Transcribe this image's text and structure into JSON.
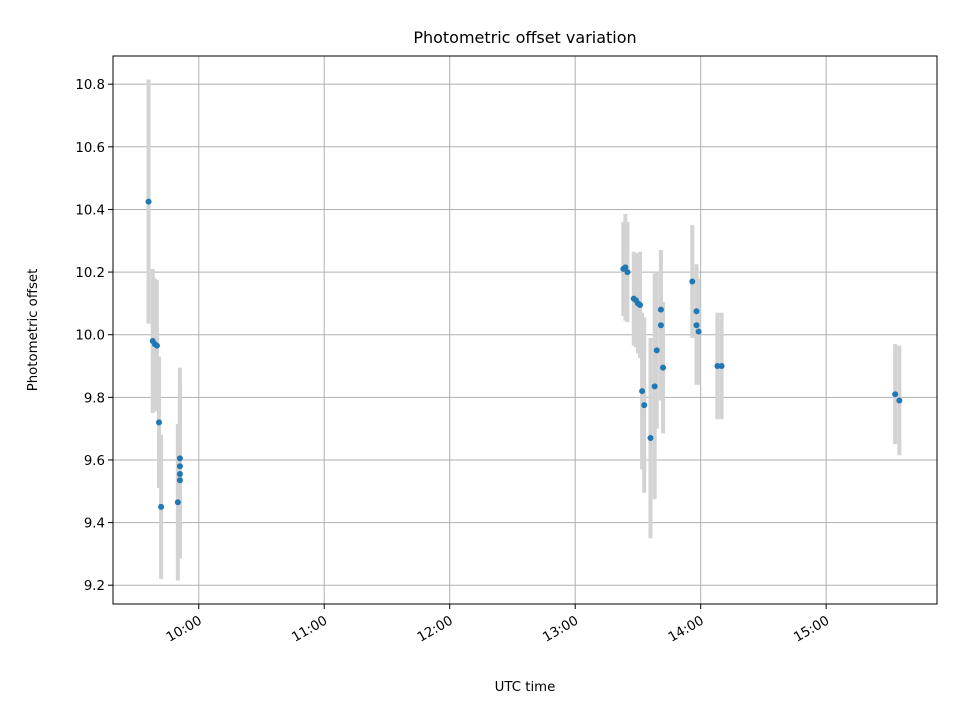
{
  "chart_data": {
    "type": "scatter",
    "title": "Photometric offset variation",
    "xlabel": "UTC time",
    "ylabel": "Photometric offset",
    "xlim": [
      "09:19",
      "15:53"
    ],
    "ylim": [
      9.14,
      10.89
    ],
    "grid": true,
    "xticks": [
      "10:00",
      "11:00",
      "12:00",
      "13:00",
      "14:00",
      "15:00"
    ],
    "yticks": [
      "9.2",
      "9.4",
      "9.6",
      "9.8",
      "10.0",
      "10.2",
      "10.4",
      "10.6",
      "10.8"
    ],
    "point_color": "#1f77b4",
    "errorbar_color": "#d3d3d3",
    "series": [
      {
        "points": [
          {
            "x": "09:36",
            "y": 10.425,
            "err": 0.39
          },
          {
            "x": "09:38",
            "y": 9.98,
            "err": 0.23
          },
          {
            "x": "09:39",
            "y": 9.97,
            "err": 0.21
          },
          {
            "x": "09:40",
            "y": 9.965,
            "err": 0.21
          },
          {
            "x": "09:41",
            "y": 9.72,
            "err": 0.21
          },
          {
            "x": "09:42",
            "y": 9.45,
            "err": 0.23
          },
          {
            "x": "09:50",
            "y": 9.465,
            "err": 0.25
          },
          {
            "x": "09:51",
            "y": 9.605,
            "err": 0.29
          },
          {
            "x": "09:51",
            "y": 9.58,
            "err": 0.27
          },
          {
            "x": "09:51",
            "y": 9.555,
            "err": 0.26
          },
          {
            "x": "09:51",
            "y": 9.535,
            "err": 0.25
          },
          {
            "x": "13:23",
            "y": 10.21,
            "err": 0.15
          },
          {
            "x": "13:24",
            "y": 10.215,
            "err": 0.17
          },
          {
            "x": "13:25",
            "y": 10.2,
            "err": 0.16
          },
          {
            "x": "13:28",
            "y": 10.115,
            "err": 0.15
          },
          {
            "x": "13:29",
            "y": 10.11,
            "err": 0.15
          },
          {
            "x": "13:30",
            "y": 10.1,
            "err": 0.16
          },
          {
            "x": "13:31",
            "y": 10.095,
            "err": 0.17
          },
          {
            "x": "13:32",
            "y": 9.82,
            "err": 0.25
          },
          {
            "x": "13:33",
            "y": 9.775,
            "err": 0.28
          },
          {
            "x": "13:36",
            "y": 9.67,
            "err": 0.32
          },
          {
            "x": "13:38",
            "y": 9.835,
            "err": 0.36
          },
          {
            "x": "13:39",
            "y": 9.95,
            "err": 0.25
          },
          {
            "x": "13:41",
            "y": 10.08,
            "err": 0.19
          },
          {
            "x": "13:41",
            "y": 10.03,
            "err": 0.24
          },
          {
            "x": "13:42",
            "y": 9.895,
            "err": 0.21
          },
          {
            "x": "13:56",
            "y": 10.17,
            "err": 0.18
          },
          {
            "x": "13:58",
            "y": 10.075,
            "err": 0.15
          },
          {
            "x": "13:58",
            "y": 10.03,
            "err": 0.19
          },
          {
            "x": "13:59",
            "y": 10.01,
            "err": 0.17
          },
          {
            "x": "14:08",
            "y": 9.9,
            "err": 0.17
          },
          {
            "x": "14:10",
            "y": 9.9,
            "err": 0.17
          },
          {
            "x": "15:33",
            "y": 9.81,
            "err": 0.16
          },
          {
            "x": "15:35",
            "y": 9.79,
            "err": 0.175
          }
        ]
      }
    ]
  }
}
